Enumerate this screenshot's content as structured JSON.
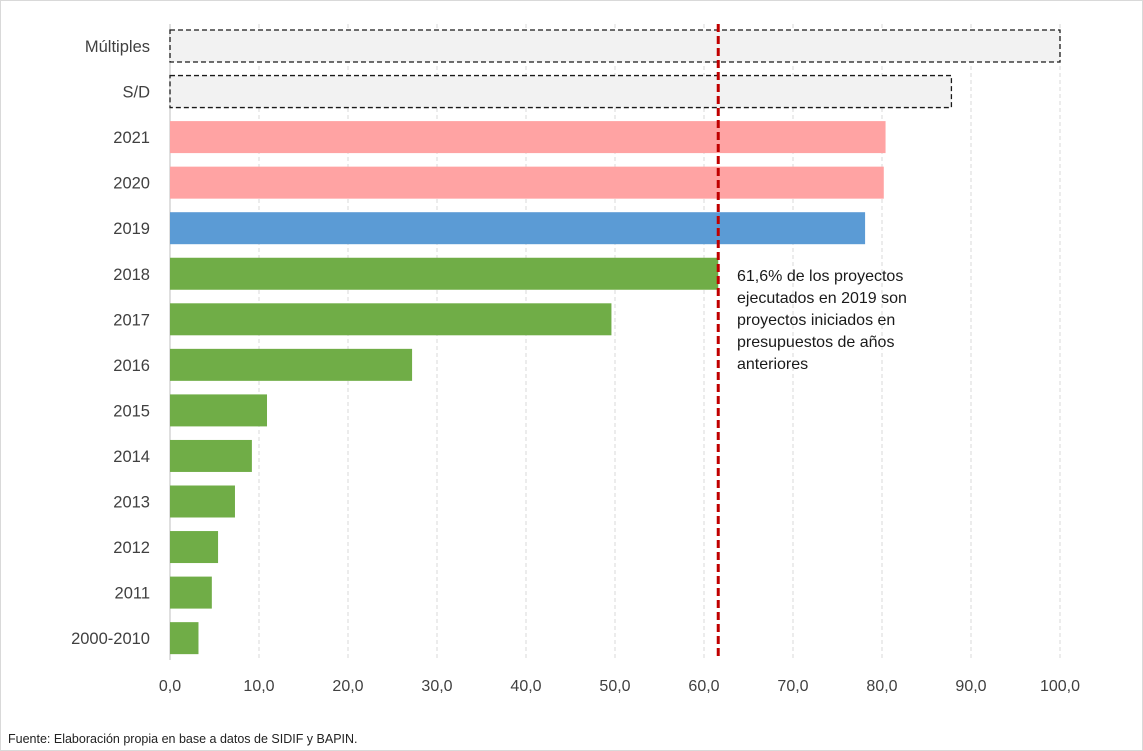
{
  "chart_data": {
    "type": "bar",
    "orientation": "horizontal",
    "categories": [
      "Múltiples",
      "S/D",
      "2021",
      "2020",
      "2019",
      "2018",
      "2017",
      "2016",
      "2015",
      "2014",
      "2013",
      "2012",
      "2011",
      "2000-2010"
    ],
    "values": [
      100.0,
      87.8,
      80.4,
      80.2,
      78.1,
      61.6,
      49.6,
      27.2,
      10.9,
      9.2,
      7.3,
      5.4,
      4.7,
      3.2
    ],
    "bar_colors": [
      "#f2f2f2",
      "#f2f2f2",
      "#ffa3a3",
      "#ffa3a3",
      "#5b9bd5",
      "#70ad47",
      "#70ad47",
      "#70ad47",
      "#70ad47",
      "#70ad47",
      "#70ad47",
      "#70ad47",
      "#70ad47",
      "#70ad47"
    ],
    "bar_borders": [
      "dashed",
      "dashed",
      "none",
      "none",
      "none",
      "none",
      "none",
      "none",
      "none",
      "none",
      "none",
      "none",
      "none",
      "none"
    ],
    "x_ticks": [
      "0,0",
      "10,0",
      "20,0",
      "30,0",
      "40,0",
      "50,0",
      "60,0",
      "70,0",
      "80,0",
      "90,0",
      "100,0"
    ],
    "xlim": [
      0,
      100
    ],
    "grid": "vertical dashed",
    "reference_line": {
      "value": 61.6,
      "color": "#c00000",
      "style": "dashed"
    },
    "annotation": "61,6%  de los proyectos ejecutados en 2019 son proyectos iniciados en presupuestos de años anteriores"
  },
  "footnote": "Fuente: Elaboración propia en base a datos de SIDIF y BAPIN."
}
